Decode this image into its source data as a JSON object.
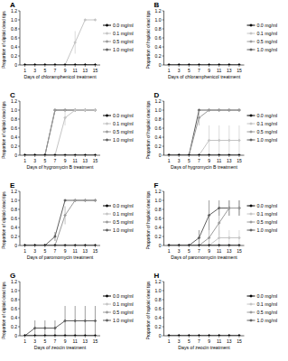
{
  "chart_data": [
    {
      "type": "line",
      "title": "A",
      "x_label": "Days of chloramphenicol treatment",
      "y_label": "Proportion of diploid dead tips",
      "x": [
        1,
        3,
        5,
        7,
        9,
        11,
        13,
        15
      ],
      "xlim": [
        0,
        16
      ],
      "xticks": [
        1,
        3,
        5,
        7,
        9,
        11,
        13,
        15
      ],
      "ylim": [
        0,
        1.2
      ],
      "yticks": [
        0,
        0.2,
        0.4,
        0.6,
        0.8,
        {
          "value": 1,
          "label": "1.0"
        },
        1.2
      ],
      "grid": false,
      "legend": "right",
      "series": [
        {
          "name": "0.0 mg/ml",
          "color": "#000000",
          "marker": "diamond",
          "values": [
            0,
            0,
            0,
            0,
            0,
            0,
            0,
            0
          ]
        },
        {
          "name": "0.1 mg/ml",
          "color": "#c4c4c4",
          "marker": "diamond",
          "values": [
            0,
            0,
            0,
            0,
            0,
            0.5,
            1,
            1
          ],
          "errors": [
            0,
            0,
            0,
            0,
            0,
            0.25,
            0,
            0
          ]
        },
        {
          "name": "0.5 mg/ml",
          "color": "#9a9a9a",
          "marker": "diamond",
          "values": [
            0,
            0,
            0,
            0,
            0,
            0,
            0,
            0
          ]
        },
        {
          "name": "1.0 mg/ml",
          "color": "#5e5e5e",
          "marker": "diamond",
          "values": [
            0,
            0,
            0,
            0,
            0,
            0,
            0,
            0
          ]
        }
      ]
    },
    {
      "type": "line",
      "title": "B",
      "x_label": "Days of chloramphenicol treatment",
      "y_label": "Proportion of haploid dead tips",
      "x": [
        1,
        3,
        5,
        7,
        9,
        11,
        13,
        15
      ],
      "xlim": [
        0,
        16
      ],
      "xticks": [
        1,
        3,
        5,
        7,
        9,
        11,
        13,
        15
      ],
      "ylim": [
        0,
        1.2
      ],
      "yticks": [
        0,
        0.2,
        0.4,
        0.6,
        0.8,
        {
          "value": 1,
          "label": "1.0"
        },
        1.2
      ],
      "grid": false,
      "legend": "right",
      "series": [
        {
          "name": "0.0 mg/ml",
          "color": "#000000",
          "marker": "diamond",
          "values": [
            0,
            0,
            0,
            0,
            0,
            0,
            0,
            0
          ]
        },
        {
          "name": "0.1 mg/ml",
          "color": "#c4c4c4",
          "marker": "diamond",
          "values": [
            0,
            0,
            0,
            0,
            0,
            0,
            0,
            0
          ]
        },
        {
          "name": "0.5 mg/ml",
          "color": "#9a9a9a",
          "marker": "diamond",
          "values": [
            0,
            0,
            0,
            0,
            0,
            0,
            0,
            0
          ]
        },
        {
          "name": "1.0 mg/ml",
          "color": "#5e5e5e",
          "marker": "diamond",
          "values": [
            0,
            0,
            0,
            0,
            0,
            0,
            0,
            0
          ]
        }
      ]
    },
    {
      "type": "line",
      "title": "C",
      "x_label": "Days of hygromycin B treatment",
      "y_label": "Proportion of diploid dead tips",
      "x": [
        1,
        3,
        5,
        7,
        9,
        11,
        13,
        15
      ],
      "xlim": [
        0,
        16
      ],
      "xticks": [
        1,
        3,
        5,
        7,
        9,
        11,
        13,
        15
      ],
      "ylim": [
        0,
        1.2
      ],
      "yticks": [
        0,
        0.2,
        0.4,
        0.6,
        0.8,
        {
          "value": 1,
          "label": "1.0"
        },
        1.2
      ],
      "grid": false,
      "legend": "right",
      "series": [
        {
          "name": "0.0 mg/ml",
          "color": "#000000",
          "marker": "diamond",
          "values": [
            0,
            0,
            0,
            0,
            0,
            0,
            0,
            0
          ]
        },
        {
          "name": "0.1 mg/ml",
          "color": "#c4c4c4",
          "marker": "diamond",
          "values": [
            0,
            0,
            0,
            0,
            0.83,
            1,
            1,
            1
          ],
          "errors": [
            0,
            0,
            0,
            0,
            0.17,
            0,
            0,
            0
          ]
        },
        {
          "name": "0.5 mg/ml",
          "color": "#9a9a9a",
          "marker": "diamond",
          "values": [
            0,
            0,
            0,
            1,
            1,
            1,
            1,
            1
          ]
        },
        {
          "name": "1.0 mg/ml",
          "color": "#5e5e5e",
          "marker": "diamond",
          "values": [
            0,
            0,
            0,
            1,
            1,
            1,
            1,
            1
          ]
        }
      ]
    },
    {
      "type": "line",
      "title": "D",
      "x_label": "Days of hygromycin B treatment",
      "y_label": "Proportion of haploid dead tips",
      "x": [
        1,
        3,
        5,
        7,
        9,
        11,
        13,
        15
      ],
      "xlim": [
        0,
        16
      ],
      "xticks": [
        1,
        3,
        5,
        7,
        9,
        11,
        13,
        15
      ],
      "ylim": [
        0,
        1.2
      ],
      "yticks": [
        0,
        0.2,
        0.4,
        0.6,
        0.8,
        {
          "value": 1,
          "label": "1.0"
        },
        1.2
      ],
      "grid": false,
      "legend": "right",
      "series": [
        {
          "name": "0.0 mg/ml",
          "color": "#000000",
          "marker": "diamond",
          "values": [
            0,
            0,
            0,
            0,
            0,
            0,
            0,
            0
          ]
        },
        {
          "name": "0.1 mg/ml",
          "color": "#c4c4c4",
          "marker": "diamond",
          "values": [
            0,
            0,
            0,
            0,
            0.33,
            0.33,
            0.33,
            0.33
          ],
          "errors": [
            0,
            0,
            0,
            0,
            0.33,
            0.33,
            0.33,
            0.33
          ]
        },
        {
          "name": "0.5 mg/ml",
          "color": "#9a9a9a",
          "marker": "diamond",
          "values": [
            0,
            0,
            0,
            0.83,
            1,
            1,
            1,
            1
          ],
          "errors": [
            0,
            0,
            0,
            0.17,
            0,
            0,
            0,
            0
          ]
        },
        {
          "name": "1.0 mg/ml",
          "color": "#5e5e5e",
          "marker": "diamond",
          "values": [
            0,
            0,
            0,
            1,
            1,
            1,
            1,
            1
          ]
        }
      ]
    },
    {
      "type": "line",
      "title": "E",
      "x_label": "Days of paromomycin treatment",
      "y_label": "Proportion of diploid dead tips",
      "x": [
        1,
        3,
        5,
        7,
        9,
        11,
        13,
        15
      ],
      "xlim": [
        0,
        16
      ],
      "xticks": [
        1,
        3,
        5,
        7,
        9,
        11,
        13,
        15
      ],
      "ylim": [
        0,
        1.2
      ],
      "yticks": [
        0,
        0.2,
        0.4,
        0.6,
        0.8,
        {
          "value": 1,
          "label": "1.0"
        },
        1.2
      ],
      "grid": false,
      "legend": "right",
      "series": [
        {
          "name": "0.0 mg/ml",
          "color": "#000000",
          "marker": "diamond",
          "values": [
            0,
            0,
            0,
            0,
            0,
            0,
            0,
            0
          ]
        },
        {
          "name": "0.1 mg/ml",
          "color": "#c4c4c4",
          "marker": "diamond",
          "values": [
            0,
            0,
            0,
            0,
            0,
            0,
            0,
            0
          ]
        },
        {
          "name": "0.5 mg/ml",
          "color": "#9a9a9a",
          "marker": "diamond",
          "values": [
            0,
            0,
            0,
            0,
            0.67,
            1,
            1,
            1
          ],
          "errors": [
            0,
            0,
            0,
            0,
            0.2,
            0,
            0,
            0
          ]
        },
        {
          "name": "1.0 mg/ml",
          "color": "#5e5e5e",
          "marker": "diamond",
          "values": [
            0,
            0,
            0,
            0.2,
            1,
            1,
            1,
            1
          ],
          "errors": [
            0,
            0,
            0,
            0.1,
            0,
            0,
            0,
            0
          ]
        }
      ]
    },
    {
      "type": "line",
      "title": "F",
      "x_label": "Days of paromomycin treatment",
      "y_label": "Proportion of haploid dead tips",
      "x": [
        1,
        3,
        5,
        7,
        9,
        11,
        13,
        15
      ],
      "xlim": [
        0,
        16
      ],
      "xticks": [
        1,
        3,
        5,
        7,
        9,
        11,
        13,
        15
      ],
      "ylim": [
        0,
        1.2
      ],
      "yticks": [
        0,
        0.2,
        0.4,
        0.6,
        0.8,
        {
          "value": 1,
          "label": "1.0"
        },
        1.2
      ],
      "grid": false,
      "legend": "right",
      "series": [
        {
          "name": "0.0 mg/ml",
          "color": "#000000",
          "marker": "diamond",
          "values": [
            0,
            0,
            0,
            0,
            0,
            0,
            0,
            0
          ]
        },
        {
          "name": "0.1 mg/ml",
          "color": "#c4c4c4",
          "marker": "diamond",
          "values": [
            0,
            0,
            0,
            0,
            0,
            0.17,
            0.17,
            0.17
          ],
          "errors": [
            0,
            0,
            0,
            0,
            0,
            0.17,
            0.17,
            0.17
          ]
        },
        {
          "name": "0.5 mg/ml",
          "color": "#9a9a9a",
          "marker": "diamond",
          "values": [
            0,
            0,
            0,
            0,
            0.17,
            0.5,
            0.83,
            0.83
          ],
          "errors": [
            0,
            0,
            0,
            0,
            0.17,
            0.29,
            0.17,
            0.17
          ]
        },
        {
          "name": "1.0 mg/ml",
          "color": "#5e5e5e",
          "marker": "diamond",
          "values": [
            0,
            0,
            0,
            0.17,
            0.67,
            0.83,
            0.83,
            0.83
          ],
          "errors": [
            0,
            0,
            0,
            0.17,
            0.33,
            0.17,
            0.17,
            0.17
          ]
        }
      ]
    },
    {
      "type": "line",
      "title": "G",
      "x_label": "Days of zeocin treatment",
      "y_label": "Proportion of diploid dead tips",
      "x": [
        1,
        3,
        5,
        7,
        9,
        11,
        13,
        15
      ],
      "xlim": [
        0,
        16
      ],
      "xticks": [
        1,
        3,
        5,
        7,
        9,
        11,
        13,
        15
      ],
      "ylim": [
        0,
        1.2
      ],
      "yticks": [
        0,
        0.2,
        0.4,
        0.6,
        0.8,
        {
          "value": 1,
          "label": "1.0"
        },
        1.2
      ],
      "grid": false,
      "legend": "right",
      "series": [
        {
          "name": "0.0 mg/ml",
          "color": "#000000",
          "marker": "diamond",
          "values": [
            0,
            0,
            0,
            0,
            0,
            0,
            0,
            0
          ]
        },
        {
          "name": "0.1 mg/ml",
          "color": "#c4c4c4",
          "marker": "diamond",
          "values": [
            0,
            0,
            0,
            0,
            0,
            0,
            0,
            0
          ]
        },
        {
          "name": "0.5 mg/ml",
          "color": "#9a9a9a",
          "marker": "diamond",
          "values": [
            0,
            0,
            0,
            0,
            0,
            0,
            0,
            0
          ]
        },
        {
          "name": "1.0 mg/ml",
          "color": "#5e5e5e",
          "marker": "diamond",
          "values": [
            0,
            0.17,
            0.17,
            0.17,
            0.33,
            0.33,
            0.33,
            0.33
          ],
          "errors": [
            0,
            0.17,
            0.17,
            0.17,
            0.33,
            0.33,
            0.33,
            0.33
          ]
        }
      ]
    },
    {
      "type": "line",
      "title": "H",
      "x_label": "Days of zeocin treatment",
      "y_label": "Proportion of haploid dead tips",
      "x": [
        1,
        3,
        5,
        7,
        9,
        11,
        13,
        15
      ],
      "xlim": [
        0,
        16
      ],
      "xticks": [
        1,
        3,
        5,
        7,
        9,
        11,
        13,
        15
      ],
      "ylim": [
        0,
        1.2
      ],
      "yticks": [
        0,
        0.2,
        0.4,
        0.6,
        0.8,
        {
          "value": 1,
          "label": "1.0"
        },
        1.2
      ],
      "grid": false,
      "legend": "right",
      "series": [
        {
          "name": "0.0 mg/ml",
          "color": "#000000",
          "marker": "diamond",
          "values": [
            0,
            0,
            0,
            0,
            0,
            0,
            0,
            0
          ]
        },
        {
          "name": "0.1 mg/ml",
          "color": "#c4c4c4",
          "marker": "diamond",
          "values": [
            0,
            0,
            0,
            0,
            0,
            0,
            0,
            0
          ]
        },
        {
          "name": "0.5 mg/ml",
          "color": "#9a9a9a",
          "marker": "diamond",
          "values": [
            0,
            0,
            0,
            0,
            0,
            0,
            0,
            0
          ]
        },
        {
          "name": "1.0 mg/ml",
          "color": "#5e5e5e",
          "marker": "diamond",
          "values": [
            0,
            0,
            0,
            0,
            0,
            0,
            0,
            0
          ]
        }
      ]
    }
  ]
}
